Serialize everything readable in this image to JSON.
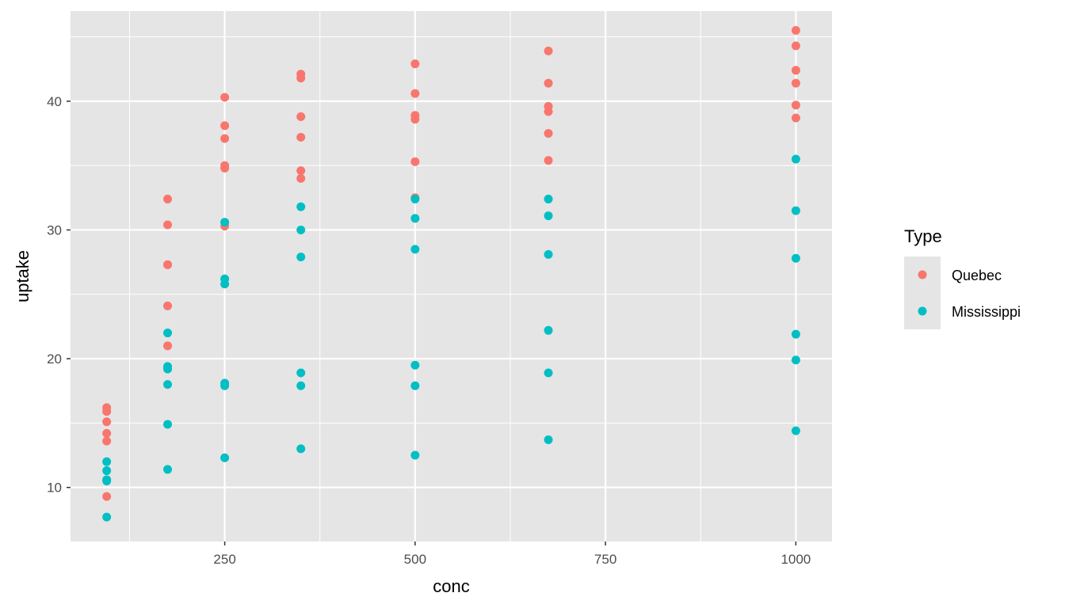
{
  "chart_data": {
    "type": "scatter",
    "title": "",
    "xlabel": "conc",
    "ylabel": "uptake",
    "xlim": [
      47.5,
      1047.5
    ],
    "ylim": [
      5.8,
      47.0
    ],
    "x_ticks": [
      250,
      500,
      750,
      1000
    ],
    "x_minor_ticks": [
      125,
      375,
      625,
      875
    ],
    "y_ticks": [
      10,
      20,
      30,
      40
    ],
    "y_minor_ticks": [
      15,
      25,
      35,
      45
    ],
    "grid": true,
    "legend": {
      "title": "Type",
      "position": "right"
    },
    "colors": {
      "panel": "#e5e5e5",
      "grid": "#ffffff"
    },
    "series": [
      {
        "name": "Quebec",
        "color": "#f8766d",
        "points": [
          [
            95,
            16.2
          ],
          [
            95,
            15.9
          ],
          [
            95,
            15.1
          ],
          [
            95,
            14.2
          ],
          [
            95,
            13.6
          ],
          [
            95,
            9.3
          ],
          [
            175,
            32.4
          ],
          [
            175,
            30.4
          ],
          [
            175,
            27.3
          ],
          [
            175,
            27.3
          ],
          [
            175,
            24.1
          ],
          [
            175,
            21.0
          ],
          [
            250,
            40.3
          ],
          [
            250,
            38.1
          ],
          [
            250,
            37.1
          ],
          [
            250,
            35.0
          ],
          [
            250,
            34.8
          ],
          [
            250,
            30.3
          ],
          [
            350,
            42.1
          ],
          [
            350,
            41.8
          ],
          [
            350,
            38.8
          ],
          [
            350,
            37.2
          ],
          [
            350,
            34.6
          ],
          [
            350,
            34.0
          ],
          [
            500,
            42.9
          ],
          [
            500,
            40.6
          ],
          [
            500,
            38.9
          ],
          [
            500,
            38.6
          ],
          [
            500,
            35.3
          ],
          [
            500,
            32.5
          ],
          [
            675,
            43.9
          ],
          [
            675,
            41.4
          ],
          [
            675,
            39.6
          ],
          [
            675,
            39.2
          ],
          [
            675,
            37.5
          ],
          [
            675,
            35.4
          ],
          [
            1000,
            45.5
          ],
          [
            1000,
            44.3
          ],
          [
            1000,
            42.4
          ],
          [
            1000,
            41.4
          ],
          [
            1000,
            39.7
          ],
          [
            1000,
            38.7
          ]
        ]
      },
      {
        "name": "Mississippi",
        "color": "#00bfc4",
        "points": [
          [
            95,
            12.0
          ],
          [
            95,
            11.3
          ],
          [
            95,
            10.6
          ],
          [
            95,
            10.5
          ],
          [
            95,
            7.7
          ],
          [
            175,
            22.0
          ],
          [
            175,
            19.4
          ],
          [
            175,
            19.2
          ],
          [
            175,
            18.0
          ],
          [
            175,
            14.9
          ],
          [
            175,
            11.4
          ],
          [
            250,
            30.6
          ],
          [
            250,
            26.2
          ],
          [
            250,
            25.8
          ],
          [
            250,
            18.1
          ],
          [
            250,
            17.9
          ],
          [
            250,
            12.3
          ],
          [
            350,
            31.8
          ],
          [
            350,
            30.0
          ],
          [
            350,
            27.9
          ],
          [
            350,
            18.9
          ],
          [
            350,
            17.9
          ],
          [
            350,
            13.0
          ],
          [
            500,
            32.4
          ],
          [
            500,
            30.9
          ],
          [
            500,
            28.5
          ],
          [
            500,
            19.5
          ],
          [
            500,
            17.9
          ],
          [
            500,
            12.5
          ],
          [
            675,
            32.4
          ],
          [
            675,
            31.1
          ],
          [
            675,
            28.1
          ],
          [
            675,
            22.2
          ],
          [
            675,
            18.9
          ],
          [
            675,
            13.7
          ],
          [
            1000,
            35.5
          ],
          [
            1000,
            31.5
          ],
          [
            1000,
            27.8
          ],
          [
            1000,
            21.9
          ],
          [
            1000,
            19.9
          ],
          [
            1000,
            14.4
          ]
        ]
      }
    ]
  }
}
